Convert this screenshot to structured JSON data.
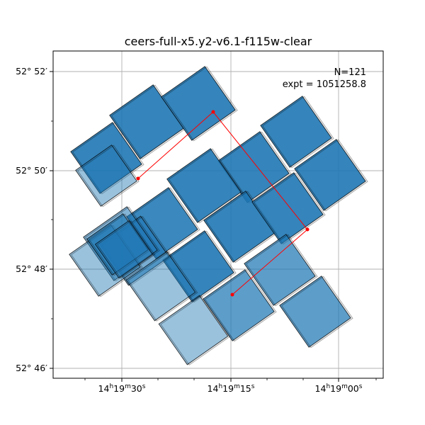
{
  "chart_data": {
    "type": "footprint",
    "title": "ceers-full-x5.y2-v6.1-f115w-clear",
    "annotation": {
      "count": "N=121",
      "exposure": "expt = 1051258.8"
    },
    "x_ticks": [
      {
        "label_parts": [
          "14",
          "h",
          "19",
          "m",
          "30",
          "s"
        ]
      },
      {
        "label_parts": [
          "14",
          "h",
          "19",
          "m",
          "15",
          "s"
        ]
      },
      {
        "label_parts": [
          "14",
          "h",
          "19",
          "m",
          "00",
          "s"
        ]
      }
    ],
    "y_ticks": [
      {
        "label": "52° 46′"
      },
      {
        "label": "52° 48′"
      },
      {
        "label": "52° 50′"
      },
      {
        "label": "52° 52′"
      }
    ],
    "grid": true,
    "fill_color": "#1f77b4",
    "edge_color": "#000000",
    "path_color": "#ff0000"
  }
}
